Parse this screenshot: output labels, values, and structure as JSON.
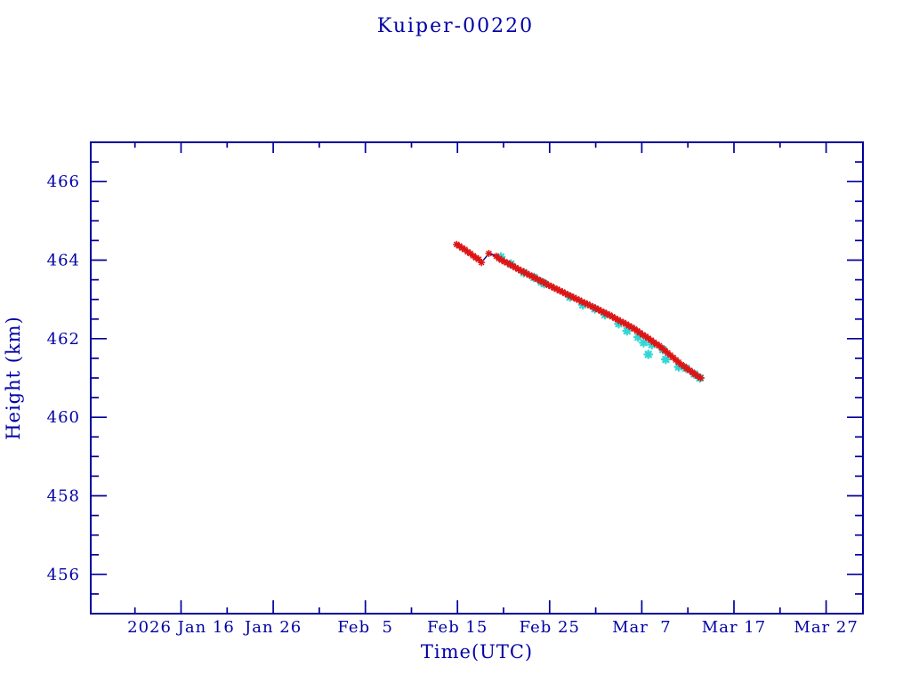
{
  "title": "Kuiper-00220",
  "colors": {
    "axis": "#00009a",
    "text": "#0000a6",
    "line": "#000090",
    "red_marker": "#dd1414",
    "cyan_marker": "#33d6d6",
    "background": "#ffffff"
  },
  "chart_data": {
    "type": "scatter",
    "title": "Kuiper-00220",
    "xlabel": "Time(UTC)",
    "ylabel": "Height (km)",
    "x_unit": "day_of_year_2026",
    "xlim": [
      6.2,
      90.0
    ],
    "ylim": [
      455,
      467
    ],
    "grid": false,
    "legend": "none",
    "x_major_ticks": [
      {
        "day": 16,
        "label": "2026 Jan 16"
      },
      {
        "day": 26,
        "label": "Jan 26"
      },
      {
        "day": 36,
        "label": "Feb  5"
      },
      {
        "day": 46,
        "label": "Feb 15"
      },
      {
        "day": 56,
        "label": "Feb 25"
      },
      {
        "day": 66,
        "label": "Mar  7"
      },
      {
        "day": 76,
        "label": "Mar 17"
      },
      {
        "day": 86,
        "label": "Mar 27"
      }
    ],
    "x_minor_ticks": [
      11,
      21,
      31,
      41,
      51,
      61,
      71,
      81
    ],
    "y_major_ticks": [
      456,
      458,
      460,
      462,
      464,
      466
    ],
    "y_minor_ticks": [
      455.5,
      456.5,
      457,
      457.5,
      458.5,
      459,
      459.5,
      460.5,
      461,
      461.5,
      462.5,
      463,
      463.5,
      464.5,
      465,
      465.5,
      466.5
    ],
    "series": [
      {
        "name": "height-red",
        "marker": "asterisk",
        "color": "#dd1414",
        "connect_line": true,
        "points": [
          [
            45.9,
            464.4
          ],
          [
            46.2,
            464.36
          ],
          [
            46.5,
            464.31
          ],
          [
            46.8,
            464.27
          ],
          [
            47.1,
            464.21
          ],
          [
            47.4,
            464.17
          ],
          [
            47.7,
            464.11
          ],
          [
            48.0,
            464.06
          ],
          [
            48.3,
            464.02
          ],
          [
            48.6,
            463.94
          ],
          [
            49.4,
            464.17
          ],
          [
            50.2,
            464.1
          ],
          [
            50.5,
            464.04
          ],
          [
            50.8,
            464.0
          ],
          [
            51.1,
            463.96
          ],
          [
            51.4,
            463.93
          ],
          [
            51.7,
            463.89
          ],
          [
            52.0,
            463.85
          ],
          [
            52.3,
            463.81
          ],
          [
            52.6,
            463.77
          ],
          [
            52.9,
            463.73
          ],
          [
            53.2,
            463.7
          ],
          [
            53.5,
            463.66
          ],
          [
            53.8,
            463.62
          ],
          [
            54.1,
            463.59
          ],
          [
            54.4,
            463.55
          ],
          [
            54.7,
            463.51
          ],
          [
            55.0,
            463.47
          ],
          [
            55.3,
            463.44
          ],
          [
            55.6,
            463.4
          ],
          [
            55.9,
            463.36
          ],
          [
            56.2,
            463.33
          ],
          [
            56.5,
            463.29
          ],
          [
            56.8,
            463.26
          ],
          [
            57.1,
            463.22
          ],
          [
            57.4,
            463.19
          ],
          [
            57.7,
            463.15
          ],
          [
            58.0,
            463.12
          ],
          [
            58.3,
            463.08
          ],
          [
            58.6,
            463.05
          ],
          [
            58.9,
            463.01
          ],
          [
            59.2,
            462.98
          ],
          [
            59.5,
            462.94
          ],
          [
            59.8,
            462.91
          ],
          [
            60.1,
            462.88
          ],
          [
            60.4,
            462.84
          ],
          [
            60.7,
            462.81
          ],
          [
            61.0,
            462.77
          ],
          [
            61.3,
            462.74
          ],
          [
            61.6,
            462.7
          ],
          [
            61.9,
            462.67
          ],
          [
            62.2,
            462.63
          ],
          [
            62.5,
            462.6
          ],
          [
            62.8,
            462.56
          ],
          [
            63.1,
            462.52
          ],
          [
            63.4,
            462.48
          ],
          [
            63.7,
            462.44
          ],
          [
            64.0,
            462.41
          ],
          [
            64.3,
            462.37
          ],
          [
            64.6,
            462.33
          ],
          [
            64.9,
            462.29
          ],
          [
            65.2,
            462.25
          ],
          [
            65.5,
            462.2
          ],
          [
            65.8,
            462.15
          ],
          [
            66.1,
            462.1
          ],
          [
            66.4,
            462.06
          ],
          [
            66.7,
            462.01
          ],
          [
            67.0,
            461.96
          ],
          [
            67.3,
            461.91
          ],
          [
            67.6,
            461.86
          ],
          [
            67.9,
            461.82
          ],
          [
            68.2,
            461.76
          ],
          [
            68.5,
            461.7
          ],
          [
            68.8,
            461.64
          ],
          [
            69.1,
            461.58
          ],
          [
            69.4,
            461.52
          ],
          [
            69.7,
            461.46
          ],
          [
            70.0,
            461.4
          ],
          [
            70.3,
            461.34
          ],
          [
            70.6,
            461.29
          ],
          [
            70.9,
            461.24
          ],
          [
            71.2,
            461.19
          ],
          [
            71.5,
            461.14
          ],
          [
            71.8,
            461.09
          ],
          [
            72.1,
            461.04
          ],
          [
            72.4,
            461.0
          ]
        ]
      },
      {
        "name": "height-cyan",
        "marker": "asterisk",
        "color": "#33d6d6",
        "connect_line": false,
        "points": [
          [
            50.7,
            464.08
          ],
          [
            51.8,
            463.9
          ],
          [
            53.2,
            463.68
          ],
          [
            54.3,
            463.56
          ],
          [
            55.1,
            463.44
          ],
          [
            55.4,
            463.4
          ],
          [
            58.2,
            463.06
          ],
          [
            59.6,
            462.86
          ],
          [
            60.9,
            462.76
          ],
          [
            62.0,
            462.61
          ],
          [
            63.5,
            462.38
          ],
          [
            64.4,
            462.2
          ],
          [
            65.6,
            462.04
          ],
          [
            66.2,
            461.9
          ],
          [
            66.7,
            461.6
          ],
          [
            67.1,
            461.85
          ],
          [
            68.3,
            461.72
          ],
          [
            68.6,
            461.47
          ],
          [
            70.0,
            461.28
          ],
          [
            70.8,
            461.25
          ],
          [
            71.7,
            461.1
          ],
          [
            72.3,
            461.0
          ]
        ]
      }
    ]
  }
}
